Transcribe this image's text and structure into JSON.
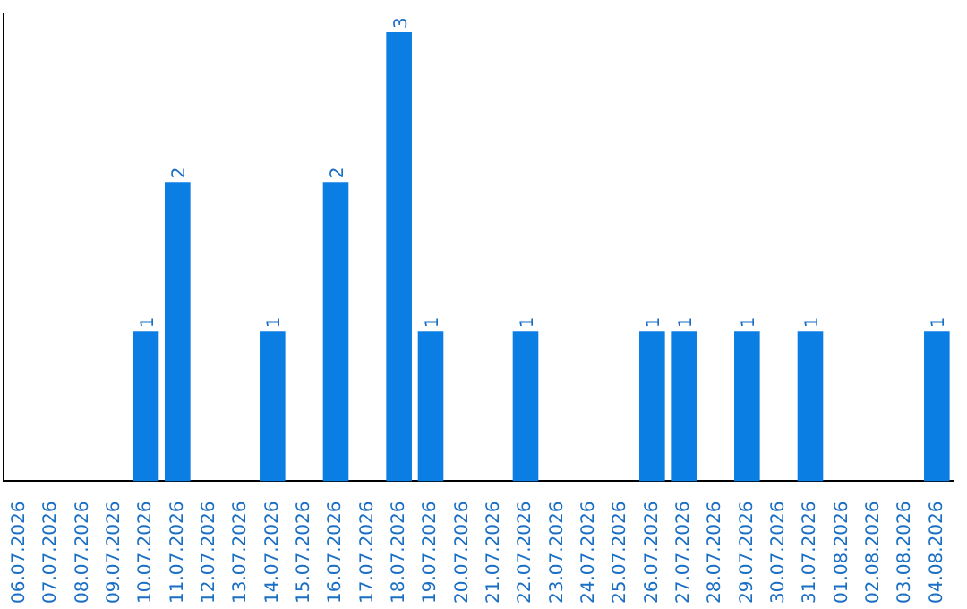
{
  "chart_data": {
    "type": "bar",
    "categories": [
      "06.07.2026",
      "07.07.2026",
      "08.07.2026",
      "09.07.2026",
      "10.07.2026",
      "11.07.2026",
      "12.07.2026",
      "13.07.2026",
      "14.07.2026",
      "15.07.2026",
      "16.07.2026",
      "17.07.2026",
      "18.07.2026",
      "19.07.2026",
      "20.07.2026",
      "21.07.2026",
      "22.07.2026",
      "23.07.2026",
      "24.07.2026",
      "25.07.2026",
      "26.07.2026",
      "27.07.2026",
      "28.07.2026",
      "29.07.2026",
      "30.07.2026",
      "31.07.2026",
      "01.08.2026",
      "02.08.2026",
      "03.08.2026",
      "04.08.2026"
    ],
    "values": [
      0,
      0,
      0,
      0,
      1,
      2,
      0,
      0,
      1,
      0,
      2,
      0,
      3,
      1,
      0,
      0,
      1,
      0,
      0,
      0,
      1,
      1,
      0,
      1,
      0,
      1,
      0,
      0,
      0,
      1
    ],
    "value_labels": [
      null,
      null,
      null,
      null,
      "1",
      "2",
      null,
      null,
      "1",
      null,
      "2",
      null,
      "3",
      "1",
      null,
      null,
      "1",
      null,
      null,
      null,
      "1",
      "1",
      null,
      "1",
      null,
      "1",
      null,
      null,
      null,
      "1"
    ],
    "color": "#0b7ee3",
    "ylim": [
      0,
      3.12
    ],
    "grid": false,
    "legend": false,
    "tick_labels": "x"
  }
}
